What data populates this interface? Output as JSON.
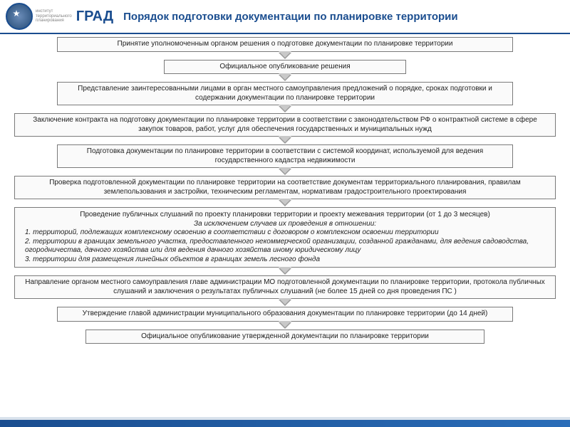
{
  "header": {
    "institute_line1": "институт",
    "institute_line2": "территориального",
    "institute_line3": "планирования",
    "brand": "ГРАД",
    "title": "Порядок подготовки документации по планировке территории"
  },
  "colors": {
    "accent": "#1a4d8f",
    "box_border": "#7a7a7a",
    "box_bg": "#fafafa",
    "arrow_dark": "#999999",
    "arrow_light": "#c8c8c8",
    "text": "#222222"
  },
  "steps": {
    "s1": "Принятие уполномоченным органом решения о подготовке документации по планировке территории",
    "s2": "Официальное опубликование решения",
    "s3": "Представление заинтересованными лицами в орган местного самоуправления предложений о порядке, сроках подготовки и содержании документации по планировке территории",
    "s4": "Заключение контракта на подготовку документации по планировке территории в соответствии с законодательством РФ о контрактной системе в сфере закупок товаров, работ, услуг для обеспечения государственных и муниципальных нужд",
    "s5": "Подготовка документации по планировке территории в соответствии с системой координат, используемой для ведения государственного кадастра недвижимости",
    "s6": "Проверка подготовленной документации по планировке территории на соответствие документам территориального планирования, правилам землепользования и застройки, техническим регламентам, нормативам градостроительного проектирования",
    "s7_line1": "Проведение публичных слушаний по проекту планировки территории и проекту межевания территории (от 1 до 3 месяцев)",
    "s7_em": "За исключением случаев их проведения в отношении:",
    "s7_li1": "1. территорий,  подлежащих комплексному освоению в соответствии с договором о комплексном освоении территории",
    "s7_li2": "2. территории в границах земельного участка, предоставленного некоммерческой организации, созданной гражданами, для ведения садоводства, огородничества, дачного хозяйства или для ведения дачного хозяйства иному юридическому лицу",
    "s7_li3": "3. территории  для размещения линейных объектов в границах земель лесного фонда",
    "s8": "Направление органом местного самоуправления главе администрации МО подготовленной документации по планировке территории, протокола  публичных слушаний и заключения о результатах публичных слушаний (не более 15 дней со дня проведения ПС )",
    "s9": "Утверждение главой администрации муниципального образования документации по планировке территории (до 14 дней)",
    "s10": "Официальное опубликование утвержденной документации по планировке территории"
  }
}
